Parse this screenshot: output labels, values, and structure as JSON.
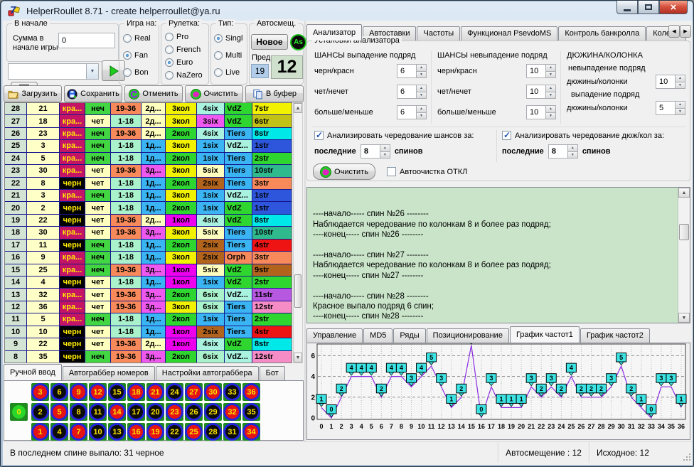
{
  "window": {
    "title": "HelperRoullet 8.71 - create helperroullet@ya.ru"
  },
  "topbar": {
    "group_start": {
      "label": "В начале",
      "field_label": "Сумма в начале игры",
      "value": "0"
    },
    "combo_value": "",
    "game_on": {
      "label": "Игра на:",
      "options": [
        "Real",
        "Fan",
        "Bon"
      ],
      "selected": "Fan"
    },
    "roulette": {
      "label": "Рулетка:",
      "options": [
        "Pro",
        "French",
        "Euro",
        "NaZero"
      ],
      "selected": "Euro"
    },
    "type": {
      "label": "Тип:",
      "options": [
        "Singl",
        "Multi",
        "Live"
      ],
      "selected": "Singl"
    },
    "autoshift": {
      "label": "Автосмещ.",
      "new_button": "Новое",
      "as_button": "As",
      "prev_label": "Пред.",
      "prev_value": "19",
      "current_value": "12"
    }
  },
  "toolbar": {
    "load": "Загрузить",
    "save": "Сохранить",
    "undo": "Отменить",
    "clear": "Очистить",
    "buffer": "В буфер"
  },
  "table": {
    "col_defaults": [
      "#d4e4d4",
      "#ffffc8"
    ],
    "value_colors": {
      "кра...": [
        "#c41466",
        "#ffec00"
      ],
      "черн": [
        "#000000",
        "#ffec00"
      ],
      "неч": [
        "#42d742",
        "#000000"
      ],
      "чет": [
        "#ffffbe",
        "#000000"
      ],
      "1-18": [
        "#a9f2cc",
        "#000000"
      ],
      "19-36": [
        "#f8895a",
        "#000000"
      ],
      "1д...": [
        "#3ab4f2",
        "#000000"
      ],
      "2д...": [
        "#ffffbe",
        "#000000"
      ],
      "3д...": [
        "#ee58ee",
        "#000000"
      ],
      "1кол": [
        "#ee00ee",
        "#000000"
      ],
      "2кол": [
        "#30d630",
        "#000000"
      ],
      "3кол": [
        "#f2f200",
        "#000000"
      ],
      "1six": [
        "#3ab4f2",
        "#000000"
      ],
      "2six": [
        "#b2641c",
        "#000000"
      ],
      "3six": [
        "#ee58ee",
        "#000000"
      ],
      "4six": [
        "#a9f2df",
        "#000000"
      ],
      "5six": [
        "#ffffbe",
        "#000000"
      ],
      "6six": [
        "#a9f2cc",
        "#000000"
      ],
      "VdZ": [
        "#30d630",
        "#000000"
      ],
      "VdZ...": [
        "#a9f2df",
        "#000000"
      ],
      "Tiers": [
        "#3ab4f2",
        "#000000"
      ],
      "Orph": [
        "#f8895a",
        "#000000"
      ],
      "1str": [
        "#2e56dc",
        "#000000"
      ],
      "2str": [
        "#30d630",
        "#000000"
      ],
      "3str": [
        "#f8895a",
        "#000000"
      ],
      "4str": [
        "#ee1414",
        "#000000"
      ],
      "6str": [
        "#c2c216",
        "#000000"
      ],
      "7str": [
        "#f2f200",
        "#000000"
      ],
      "8str": [
        "#00e8e8",
        "#000000"
      ],
      "9str": [
        "#b2641c",
        "#000000"
      ],
      "10str": [
        "#2eba8c",
        "#000000"
      ],
      "11str": [
        "#b658e0",
        "#000000"
      ],
      "12str": [
        "#f68cc6",
        "#000000"
      ]
    },
    "rows": [
      [
        "28",
        "21",
        "кра...",
        "неч",
        "19-36",
        "2д...",
        "3кол",
        "4six",
        "VdZ",
        "7str"
      ],
      [
        "27",
        "18",
        "кра...",
        "чет",
        "1-18",
        "2д...",
        "3кол",
        "3six",
        "VdZ",
        "6str"
      ],
      [
        "26",
        "23",
        "кра...",
        "неч",
        "19-36",
        "2д...",
        "2кол",
        "4six",
        "Tiers",
        "8str"
      ],
      [
        "25",
        "3",
        "кра...",
        "неч",
        "1-18",
        "1д...",
        "3кол",
        "1six",
        "VdZ...",
        "1str"
      ],
      [
        "24",
        "5",
        "кра...",
        "неч",
        "1-18",
        "1д...",
        "2кол",
        "1six",
        "Tiers",
        "2str"
      ],
      [
        "23",
        "30",
        "кра...",
        "чет",
        "19-36",
        "3д...",
        "3кол",
        "5six",
        "Tiers",
        "10str"
      ],
      [
        "22",
        "8",
        "черн",
        "чет",
        "1-18",
        "1д...",
        "2кол",
        "2six",
        "Tiers",
        "3str"
      ],
      [
        "21",
        "3",
        "кра...",
        "неч",
        "1-18",
        "1д...",
        "3кол",
        "1six",
        "VdZ...",
        "1str"
      ],
      [
        "20",
        "2",
        "черн",
        "чет",
        "1-18",
        "1д...",
        "2кол",
        "1six",
        "VdZ",
        "1str"
      ],
      [
        "19",
        "22",
        "черн",
        "чет",
        "19-36",
        "2д...",
        "1кол",
        "4six",
        "VdZ",
        "8str"
      ],
      [
        "18",
        "30",
        "кра...",
        "чет",
        "19-36",
        "3д...",
        "3кол",
        "5six",
        "Tiers",
        "10str"
      ],
      [
        "17",
        "11",
        "черн",
        "неч",
        "1-18",
        "1д...",
        "2кол",
        "2six",
        "Tiers",
        "4str"
      ],
      [
        "16",
        "9",
        "кра...",
        "неч",
        "1-18",
        "1д...",
        "3кол",
        "2six",
        "Orph",
        "3str"
      ],
      [
        "15",
        "25",
        "кра...",
        "неч",
        "19-36",
        "3д...",
        "1кол",
        "5six",
        "VdZ",
        "9str"
      ],
      [
        "14",
        "4",
        "черн",
        "чет",
        "1-18",
        "1д...",
        "1кол",
        "1six",
        "VdZ",
        "2str"
      ],
      [
        "13",
        "32",
        "кра...",
        "чет",
        "19-36",
        "3д...",
        "2кол",
        "6six",
        "VdZ...",
        "11str"
      ],
      [
        "12",
        "36",
        "кра...",
        "чет",
        "19-36",
        "3д...",
        "3кол",
        "6six",
        "Tiers",
        "12str"
      ],
      [
        "11",
        "5",
        "кра...",
        "неч",
        "1-18",
        "1д...",
        "2кол",
        "1six",
        "Tiers",
        "2str"
      ],
      [
        "10",
        "10",
        "черн",
        "чет",
        "1-18",
        "1д...",
        "1кол",
        "2six",
        "Tiers",
        "4str"
      ],
      [
        "9",
        "22",
        "черн",
        "чет",
        "19-36",
        "2д...",
        "1кол",
        "4six",
        "VdZ",
        "8str"
      ],
      [
        "8",
        "35",
        "черн",
        "неч",
        "19-36",
        "3д...",
        "2кол",
        "6six",
        "VdZ...",
        "12str"
      ]
    ]
  },
  "left_tabs": {
    "tabs": [
      "Ручной ввод",
      "Автограббер номеров",
      "Настройки автограббера",
      "Бот"
    ],
    "active": "Ручной ввод"
  },
  "numpad": {
    "rows": [
      [
        3,
        6,
        9,
        12,
        15,
        18,
        21,
        24,
        27,
        30,
        33,
        36
      ],
      [
        2,
        5,
        8,
        11,
        14,
        17,
        20,
        23,
        26,
        29,
        32,
        35
      ],
      [
        1,
        4,
        7,
        10,
        13,
        16,
        19,
        22,
        25,
        28,
        31,
        34
      ]
    ],
    "zero": 0,
    "red": [
      1,
      3,
      5,
      7,
      9,
      12,
      14,
      16,
      18,
      19,
      21,
      23,
      25,
      27,
      30,
      32,
      34,
      36
    ]
  },
  "right_tabs": {
    "tabs": [
      "Анализатор",
      "Автоставки",
      "Частоты",
      "Функционал PsevdoMS",
      "Контроль банкролла",
      "Колесо ру"
    ],
    "active": "Анализатор"
  },
  "analyzer": {
    "group_title": "Установки анализатора",
    "g1": {
      "title": "ШАНСЫ выпадение подряд",
      "rows": [
        {
          "label": "черн/красн",
          "value": "6"
        },
        {
          "label": "чет/нечет",
          "value": "6"
        },
        {
          "label": "больше/меньше",
          "value": "6"
        }
      ]
    },
    "g2": {
      "title": "ШАНСЫ невыпадение подряд",
      "rows": [
        {
          "label": "черн/красн",
          "value": "10"
        },
        {
          "label": "чет/нечет",
          "value": "10"
        },
        {
          "label": "больше/меньше",
          "value": "10"
        }
      ]
    },
    "g3": {
      "title": "ДЮЖИНА/КОЛОНКА",
      "sub1": "невыпадение подряд",
      "row1_label": "дюжины/колонки",
      "row1_value": "10",
      "sub2": "выпадение подряд",
      "row2_label": "дюжины/колонки",
      "row2_value": "5"
    },
    "alt1": {
      "label": "Анализировать чередование шансов за:",
      "checked": true,
      "pre": "последние",
      "value": "8",
      "post": "спинов"
    },
    "alt2": {
      "label": "Анализировать чередование дюж/кол за:",
      "checked": true,
      "pre": "последние",
      "value": "8",
      "post": "спинов"
    },
    "clear_button": "Очистить",
    "autoclear_label": "Автоочистка ОТКЛ",
    "autoclear_checked": false
  },
  "log": {
    "lines": [
      "",
      "----начало----- спин №26 --------",
      "Наблюдается чередование по колонкам 8 и более раз подряд;",
      "----конец----- спин №26 --------",
      "",
      "----начало----- спин №27 --------",
      "Наблюдается чередование по колонкам 8 и более раз подряд;",
      "----конец----- спин №27 --------",
      "",
      "----начало----- спин №28 --------",
      "Красное выпало подряд 6 спин;",
      "----конец----- спин №28 --------"
    ]
  },
  "bottom_tabs": {
    "tabs": [
      "Управление",
      "MD5",
      "Ряды",
      "Позиционирование",
      "График частот1",
      "График частот2"
    ],
    "active": "График частот1"
  },
  "chart_data": {
    "type": "line",
    "x": [
      0,
      1,
      2,
      3,
      4,
      5,
      6,
      7,
      8,
      9,
      10,
      11,
      12,
      13,
      14,
      15,
      16,
      17,
      18,
      19,
      20,
      21,
      22,
      23,
      24,
      25,
      26,
      27,
      28,
      29,
      30,
      31,
      32,
      33,
      34,
      35,
      36
    ],
    "values": [
      1,
      0,
      2,
      4,
      4,
      4,
      2,
      4,
      4,
      3,
      4,
      5,
      3,
      1,
      2,
      7,
      0,
      3,
      1,
      1,
      1,
      3,
      2,
      3,
      2,
      4,
      2,
      2,
      2,
      3,
      5,
      2,
      1,
      0,
      3,
      3,
      1
    ],
    "title": "",
    "xlabel": "",
    "ylabel": "",
    "yticks": [
      0,
      2,
      4,
      6
    ],
    "ylim": [
      0,
      7
    ],
    "grid": true,
    "line_color": "#8a2be2",
    "marker_color": "#3ce4e4"
  },
  "statusbar": {
    "left": "В последнем спине выпало: 31 черное",
    "autoshift": "Автосмещение : 12",
    "initial": "Исходное: 12"
  }
}
